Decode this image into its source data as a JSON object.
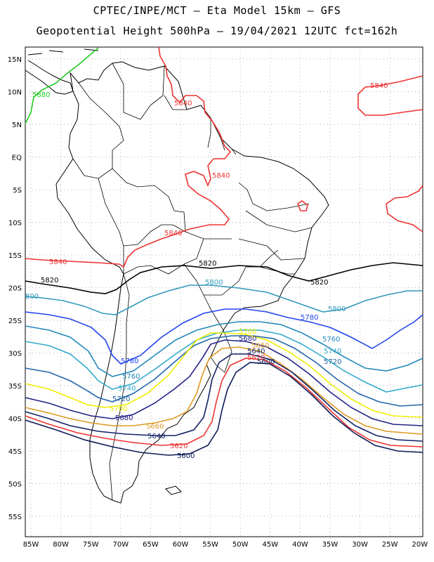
{
  "header": {
    "line1": "CPTEC/INPE/MCT –  Eta Model 15km – GFS",
    "line2": "Geopotential Height 500hPa – 19/04/2021 12UTC fct=162h"
  },
  "axes": {
    "lat_labels": [
      "15N",
      "10N",
      "5N",
      "EQ",
      "5S",
      "10S",
      "15S",
      "20S",
      "25S",
      "30S",
      "35S",
      "40S",
      "45S",
      "50S",
      "55S"
    ],
    "lon_labels": [
      "85W",
      "80W",
      "75W",
      "70W",
      "65W",
      "60W",
      "55W",
      "50W",
      "45W",
      "40W",
      "35W",
      "30W",
      "25W",
      "20W"
    ]
  },
  "contours": [
    {
      "value": "5880",
      "color": "#22cc22"
    },
    {
      "value": "5840",
      "color": "#ee3333"
    },
    {
      "value": "5820",
      "color": "#000000"
    },
    {
      "value": "5800",
      "color": "#3399bb"
    },
    {
      "value": "5780",
      "color": "#2244ee"
    },
    {
      "value": "5760",
      "color": "#2288bb"
    },
    {
      "value": "5740",
      "color": "#33aacc"
    },
    {
      "value": "5720",
      "color": "#2266aa"
    },
    {
      "value": "5700",
      "color": "#eeee00"
    },
    {
      "value": "5680",
      "color": "#222288"
    },
    {
      "value": "5660",
      "color": "#dd9922"
    },
    {
      "value": "5640",
      "color": "#112266"
    },
    {
      "value": "5620",
      "color": "#ee3333"
    },
    {
      "value": "5600",
      "color": "#0a1a55"
    }
  ],
  "labels": {
    "c5880": "5880",
    "c5840": "5840",
    "c5820": "5820",
    "c5800": "5800",
    "c5800_left": "800",
    "c5780": "5780",
    "c5760": "5760",
    "c5740": "5740",
    "c5720": "5720",
    "c5700": "5700",
    "c5680": "5680",
    "c5660": "5660",
    "c5640": "5640",
    "c5620": "5620",
    "c5600": "5600"
  }
}
